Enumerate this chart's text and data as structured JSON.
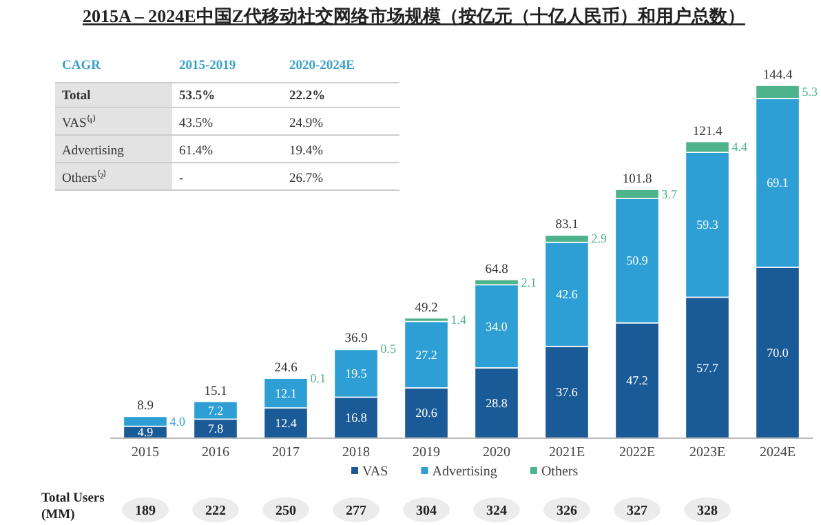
{
  "chart_data": {
    "type": "bar",
    "stacked": true,
    "title": "2015A – 2024E中国Z代移动社交网络市场规模（按亿元（十亿人民币）和用户总数）",
    "categories": [
      "2015",
      "2016",
      "2017",
      "2018",
      "2019",
      "2020",
      "2021E",
      "2022E",
      "2023E",
      "2024E"
    ],
    "series": [
      {
        "name": "VAS",
        "color": "#1a5a96",
        "values": [
          4.9,
          7.8,
          12.4,
          16.8,
          20.6,
          28.8,
          37.6,
          47.2,
          57.7,
          70.0
        ],
        "value_labels": [
          "4.9",
          "7.8",
          "12.4",
          "16.8",
          "20.6",
          "28.8",
          "37.6",
          "47.2",
          "57.7",
          "70.0"
        ]
      },
      {
        "name": "Advertising",
        "color": "#2e9fd4",
        "values": [
          4.0,
          7.2,
          12.1,
          19.5,
          27.2,
          34.0,
          42.6,
          50.9,
          59.3,
          69.1
        ],
        "value_labels": [
          "4.0",
          "7.2",
          "12.1",
          "19.5",
          "27.2",
          "34.0",
          "42.6",
          "50.9",
          "59.3",
          "69.1"
        ]
      },
      {
        "name": "Others",
        "color": "#4db38a",
        "values": [
          null,
          null,
          0.1,
          0.5,
          1.4,
          2.1,
          2.9,
          3.7,
          4.4,
          5.3
        ],
        "value_labels": [
          null,
          null,
          "0.1",
          "0.5",
          "1.4",
          "2.1",
          "2.9",
          "3.7",
          "4.4",
          "5.3"
        ]
      }
    ],
    "totals": [
      "8.9",
      "15.1",
      "24.6",
      "36.9",
      "49.2",
      "64.8",
      "83.1",
      "101.8",
      "121.4",
      "144.4"
    ],
    "legend": "bottom",
    "annotations": [
      "CAGR",
      "2015-2019",
      "2020-2024E",
      "Total",
      "53.5%",
      "22.2%",
      "VAS⁽¹⁾",
      "43.5%",
      "24.9%",
      "Advertising",
      "61.4%",
      "19.4%",
      "Others⁽²⁾",
      "-",
      "26.7%",
      "Total Users\n(MM)",
      "189",
      "222",
      "250",
      "277",
      "304",
      "324",
      "326",
      "327",
      "328"
    ]
  }
}
